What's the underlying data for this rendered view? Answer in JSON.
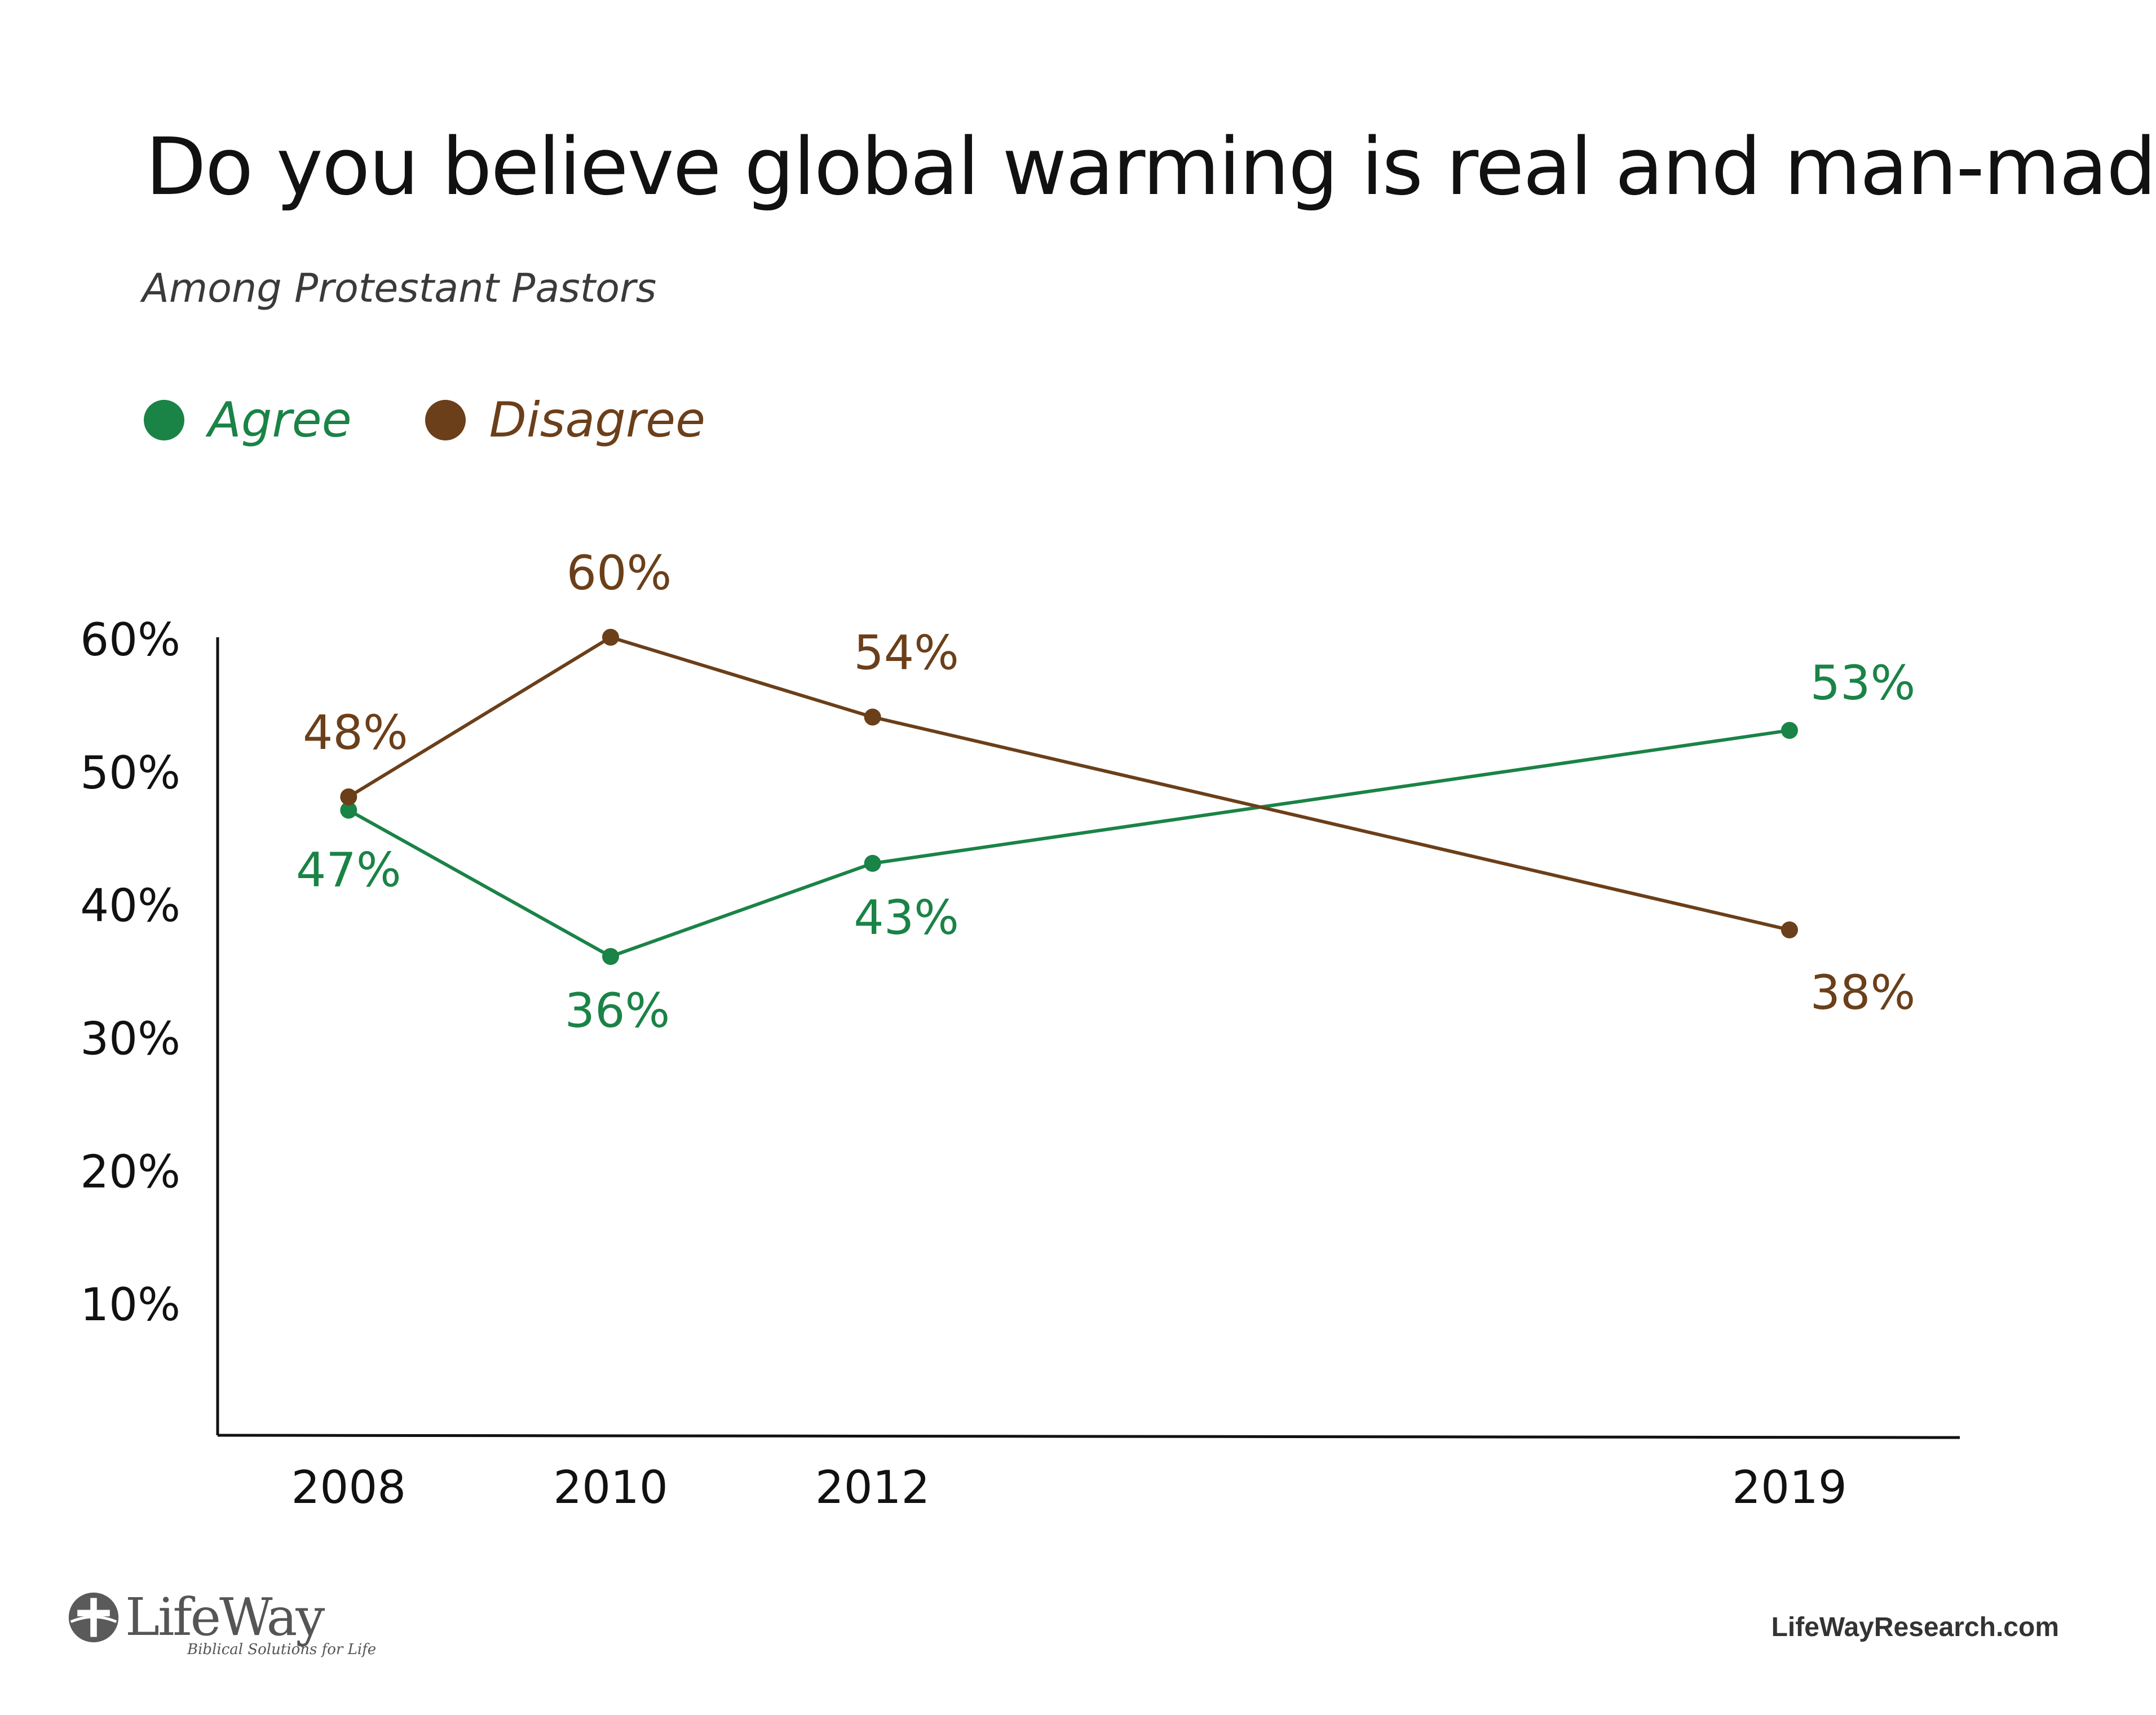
{
  "chart_data": {
    "type": "line",
    "title": "Do you believe global warming is real and man-made?",
    "subtitle": "Among Protestant Pastors",
    "x": [
      2008,
      2010,
      2012,
      2019
    ],
    "x_tick_labels": [
      "2008",
      "2010",
      "2012",
      "2019"
    ],
    "y_tick_labels": [
      "60%",
      "50%",
      "40%",
      "30%",
      "20%",
      "10%"
    ],
    "y_ticks": [
      60,
      50,
      40,
      30,
      20,
      10
    ],
    "ylim": [
      0,
      60
    ],
    "xlim": [
      2007,
      2020.3
    ],
    "grid": false,
    "legend": "top-left",
    "series": [
      {
        "name": "Agree",
        "color": "#1a8346",
        "values": [
          47,
          36,
          43,
          53
        ],
        "labels": [
          "47%",
          "36%",
          "43%",
          "53%"
        ]
      },
      {
        "name": "Disagree",
        "color": "#6b3f1a",
        "values": [
          48,
          60,
          54,
          38
        ],
        "labels": [
          "48%",
          "60%",
          "54%",
          "38%"
        ]
      }
    ]
  },
  "footer": {
    "logo_name": "LifeWay",
    "logo_tagline": "Biblical Solutions for Life",
    "website": "LifeWayResearch.com"
  }
}
